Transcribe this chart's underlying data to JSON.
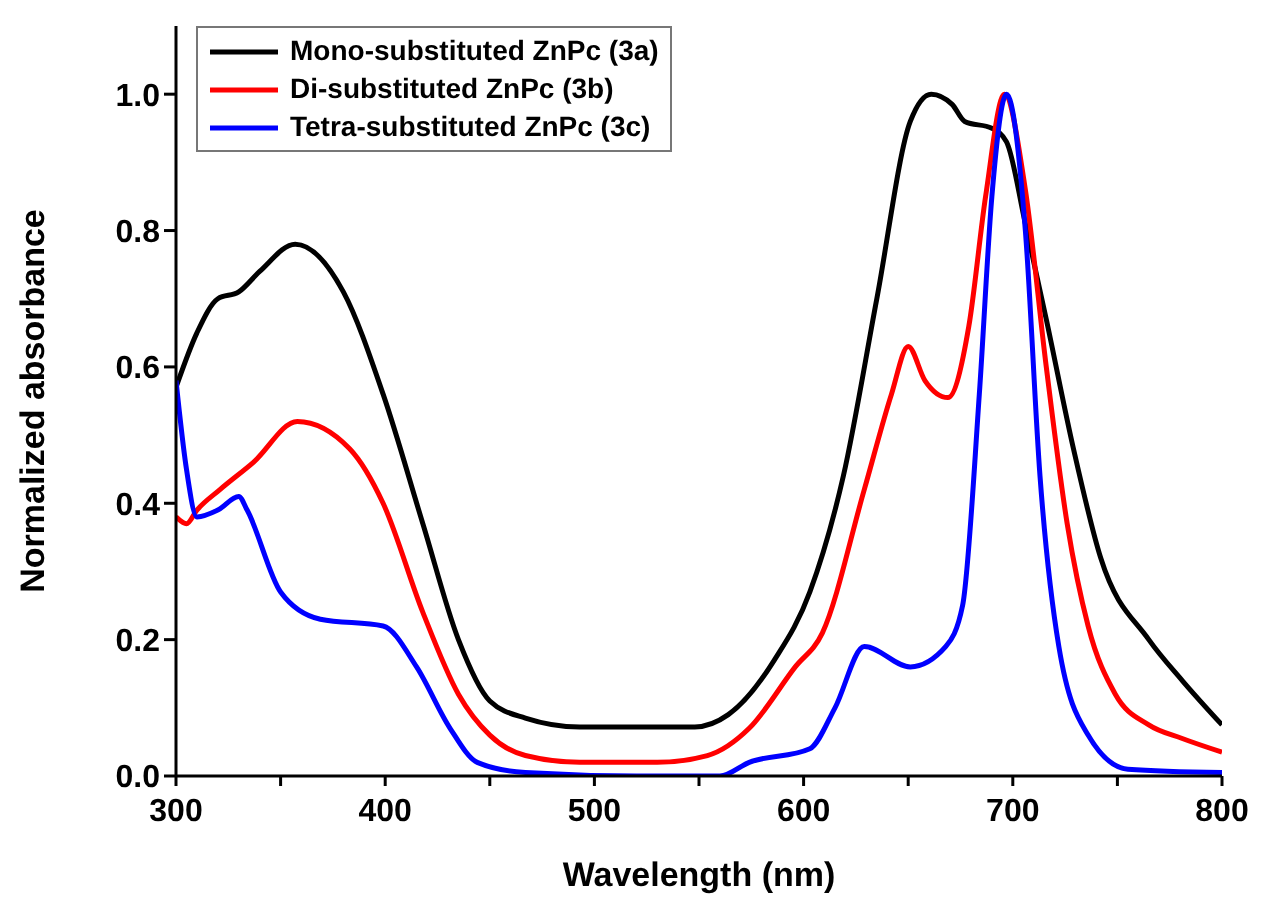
{
  "chart_data": {
    "type": "line",
    "xlabel": "Wavelength (nm)",
    "ylabel": "Normalized absorbance",
    "xlim": [
      300,
      800
    ],
    "ylim": [
      0,
      1.1
    ],
    "xticks": [
      300,
      {
        "value": 350,
        "label": null
      },
      400,
      {
        "value": 450,
        "label": null
      },
      500,
      {
        "value": 550,
        "label": null
      },
      600,
      {
        "value": 650,
        "label": null
      },
      700,
      {
        "value": 750,
        "label": null
      },
      800
    ],
    "yticks": [
      {
        "value": 0,
        "label": "0.0"
      },
      {
        "value": 0.2,
        "label": "0.2"
      },
      {
        "value": 0.4,
        "label": "0.4"
      },
      {
        "value": 0.6,
        "label": "0.6"
      },
      {
        "value": 0.8,
        "label": "0.8"
      },
      {
        "value": 1,
        "label": "1.0"
      }
    ],
    "grid": false,
    "legend": "top left",
    "marker": "none",
    "line_style": "solid",
    "series": [
      {
        "name": "Mono-substituted ZnPc (3a)",
        "color": "#000000",
        "x": [
          300,
          310,
          320,
          330,
          340,
          357,
          380,
          399,
          418,
          435,
          450,
          467,
          493,
          520,
          548,
          564,
          586,
          603,
          619,
          635,
          651,
          661,
          671,
          677,
          690,
          697,
          706,
          716,
          729,
          742,
          765,
          781,
          800
        ],
        "values": [
          0.57,
          0.65,
          0.7,
          0.71,
          0.74,
          0.78,
          0.71,
          0.56,
          0.37,
          0.2,
          0.11,
          0.085,
          0.072,
          0.072,
          0.072,
          0.09,
          0.17,
          0.27,
          0.44,
          0.7,
          0.96,
          1.0,
          0.985,
          0.96,
          0.95,
          0.93,
          0.81,
          0.67,
          0.48,
          0.32,
          0.2,
          0.14,
          0.075
        ]
      },
      {
        "name": "Di-substituted ZnPc (3b)",
        "color": "#ff0000",
        "x": [
          300,
          305,
          310,
          321,
          337,
          358,
          383,
          399,
          418,
          435,
          450,
          467,
          493,
          530,
          554,
          574,
          596,
          609,
          629,
          642,
          650,
          658,
          669,
          679,
          687,
          696,
          706,
          716,
          726,
          736,
          749,
          765,
          781,
          800
        ],
        "values": [
          0.38,
          0.37,
          0.39,
          0.42,
          0.46,
          0.52,
          0.48,
          0.4,
          0.24,
          0.12,
          0.06,
          0.03,
          0.02,
          0.02,
          0.03,
          0.07,
          0.16,
          0.21,
          0.42,
          0.56,
          0.63,
          0.58,
          0.555,
          0.66,
          0.85,
          1.0,
          0.86,
          0.6,
          0.37,
          0.22,
          0.12,
          0.075,
          0.055,
          0.035
        ]
      },
      {
        "name": "Tetra-substituted ZnPc (3c)",
        "color": "#0000ff",
        "x": [
          300,
          305,
          310,
          320,
          330,
          334,
          350,
          369,
          399,
          415,
          431,
          444,
          467,
          520,
          560,
          574,
          603,
          615,
          629,
          651,
          668,
          676,
          684,
          690,
          697,
          706,
          713,
          722,
          736,
          755,
          800
        ],
        "values": [
          0.58,
          0.45,
          0.38,
          0.39,
          0.41,
          0.39,
          0.27,
          0.23,
          0.22,
          0.16,
          0.07,
          0.02,
          0.005,
          0,
          0,
          0.02,
          0.04,
          0.1,
          0.19,
          0.16,
          0.19,
          0.25,
          0.56,
          0.85,
          1.0,
          0.8,
          0.44,
          0.19,
          0.06,
          0.01,
          0.005
        ]
      }
    ]
  }
}
